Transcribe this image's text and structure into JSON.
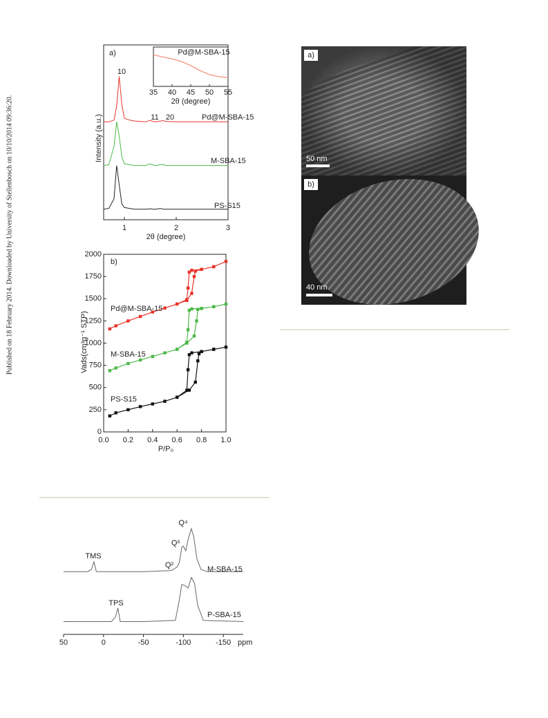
{
  "sidebar": "Published on 18 February 2014. Downloaded by University of Stellenbosch on 10/10/2014 09:36:20.",
  "tem": {
    "panels": [
      {
        "label": "a)",
        "scale": "50 nm"
      },
      {
        "label": "b)",
        "scale": "40 nm"
      }
    ]
  },
  "chart_data": [
    {
      "type": "line",
      "panel": "a)",
      "xlabel": "2θ (degree)",
      "ylabel": "Intensity (a.u.)",
      "xlim": [
        0.6,
        3
      ],
      "xticks": [
        1,
        2,
        3
      ],
      "ylim": [
        0,
        100
      ],
      "annotations": [
        "10",
        "11",
        "20"
      ],
      "x": [
        0.6,
        0.7,
        0.8,
        0.85,
        0.9,
        0.95,
        1.0,
        1.1,
        1.2,
        1.4,
        1.5,
        1.55,
        1.6,
        1.7,
        1.75,
        1.8,
        2.0,
        2.5,
        3.0
      ],
      "series": [
        {
          "name": "Pd@M-SBA-15",
          "color": "#e8332a",
          "values": [
            56,
            56,
            57,
            65,
            82,
            66,
            58,
            57,
            56.5,
            56,
            56.8,
            56.2,
            56,
            56.5,
            56.7,
            56.2,
            56,
            56,
            56
          ]
        },
        {
          "name": "M-SBA-15",
          "color": "#4cb848",
          "values": [
            31,
            31.5,
            42,
            56,
            48,
            36,
            32,
            31.5,
            31,
            31,
            32,
            31.3,
            31,
            31.5,
            31.6,
            31,
            31,
            31,
            31
          ]
        },
        {
          "name": "PS-S15",
          "color": "#222222",
          "values": [
            6,
            6.5,
            12,
            31,
            20,
            9,
            7,
            6.5,
            6,
            6,
            6.3,
            6,
            6,
            6.5,
            6,
            6,
            6,
            6,
            6
          ]
        }
      ],
      "inset": {
        "title": "Pd@M-SBA-15",
        "xlabel": "2θ (degree)",
        "xlim": [
          35,
          55
        ],
        "xticks": [
          35,
          40,
          45,
          50,
          55
        ],
        "ylim": [
          0,
          10
        ],
        "color": "#f4a08c",
        "x": [
          35,
          37.5,
          40,
          42.5,
          45,
          47.5,
          50,
          52.5,
          55
        ],
        "values": [
          8,
          7.5,
          7,
          6.3,
          5.3,
          4,
          3,
          2.5,
          2.2
        ]
      }
    },
    {
      "type": "line",
      "panel": "b)",
      "xlabel": "P/P₀",
      "ylabel": "Vads(cm³g⁻¹ STP)",
      "xlim": [
        0,
        1
      ],
      "xticks": [
        {
          "value": 0,
          "label": "0.0"
        },
        0.2,
        0.4,
        0.6,
        0.8,
        {
          "value": 1,
          "label": "1.0"
        }
      ],
      "ylim": [
        0,
        2000
      ],
      "yticks": [
        0,
        250,
        500,
        750,
        1000,
        1250,
        1500,
        1750,
        2000
      ],
      "markers": true,
      "series": [
        {
          "name": "Pd@M-SBA-15",
          "color": "#e8332a",
          "x": [
            0.05,
            0.1,
            0.2,
            0.3,
            0.4,
            0.5,
            0.6,
            0.68,
            0.72,
            0.74,
            0.75,
            0.8,
            0.9,
            1.0,
            0.9,
            0.8,
            0.72,
            0.7,
            0.69,
            0.68,
            0.6
          ],
          "values": [
            1160,
            1195,
            1250,
            1300,
            1350,
            1395,
            1440,
            1480,
            1560,
            1750,
            1810,
            1830,
            1860,
            1920,
            1860,
            1830,
            1820,
            1800,
            1620,
            1490,
            1440
          ]
        },
        {
          "name": "M-SBA-15",
          "color": "#4cb848",
          "x": [
            0.05,
            0.1,
            0.2,
            0.3,
            0.4,
            0.5,
            0.6,
            0.68,
            0.74,
            0.76,
            0.77,
            0.8,
            0.9,
            1.0,
            0.9,
            0.8,
            0.72,
            0.7,
            0.69,
            0.68,
            0.6
          ],
          "values": [
            690,
            720,
            770,
            810,
            850,
            890,
            930,
            1000,
            1080,
            1250,
            1380,
            1390,
            1410,
            1440,
            1410,
            1390,
            1385,
            1370,
            1150,
            1010,
            930
          ]
        },
        {
          "name": "PS-S15",
          "color": "#111111",
          "x": [
            0.05,
            0.1,
            0.2,
            0.3,
            0.4,
            0.5,
            0.6,
            0.7,
            0.75,
            0.77,
            0.78,
            0.8,
            0.9,
            1.0,
            0.9,
            0.8,
            0.72,
            0.7,
            0.69,
            0.68,
            0.6
          ],
          "values": [
            180,
            215,
            250,
            285,
            315,
            345,
            390,
            470,
            560,
            800,
            880,
            905,
            930,
            955,
            930,
            905,
            890,
            870,
            700,
            470,
            390
          ]
        }
      ]
    },
    {
      "type": "line",
      "xunit": "ppm",
      "xlim": [
        50,
        -175
      ],
      "xticks": [
        50,
        0,
        -50,
        -100,
        -150
      ],
      "ylim": [
        0,
        100
      ],
      "annotations": [
        "TMS",
        "Q⁴",
        "Q³",
        "Q²",
        "TPS"
      ],
      "series": [
        {
          "name": "M-SBA-15",
          "color": "#666666",
          "x": [
            50,
            20,
            15,
            12,
            9,
            0,
            -50,
            -85,
            -92,
            -95,
            -98,
            -100,
            -103,
            -106,
            -110,
            -113,
            -117,
            -122,
            -130,
            -175
          ],
          "values": [
            54,
            54,
            56,
            62.5,
            54,
            54,
            54,
            55,
            58,
            62,
            75,
            76,
            72,
            82,
            91,
            84,
            65,
            56,
            54,
            54
          ]
        },
        {
          "name": "P-SBA-15",
          "color": "#666666",
          "x": [
            50,
            -10,
            -15,
            -18,
            -21,
            -50,
            -90,
            -95,
            -98,
            -102,
            -106,
            -110,
            -114,
            -118,
            -125,
            -175
          ],
          "values": [
            11,
            11,
            15,
            22.6,
            11,
            11,
            12,
            30,
            43,
            42,
            40,
            49,
            44,
            25,
            12,
            11
          ]
        }
      ]
    }
  ]
}
